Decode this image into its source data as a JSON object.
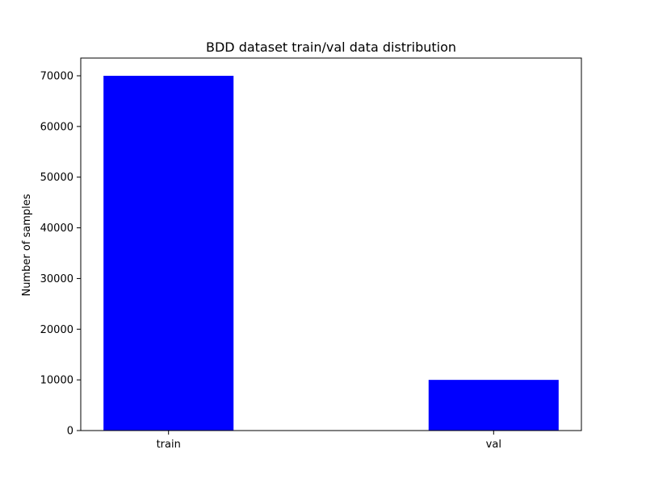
{
  "chart_data": {
    "type": "bar",
    "title": "BDD dataset train/val data distribution",
    "xlabel": "",
    "ylabel": "Number of samples",
    "categories": [
      "train",
      "val"
    ],
    "values": [
      70000,
      10000
    ],
    "ylim": [
      0,
      73500
    ],
    "yticks": [
      0,
      10000,
      20000,
      30000,
      40000,
      50000,
      60000,
      70000
    ],
    "bar_color": "#0000ff",
    "grid": false,
    "legend": "none"
  }
}
